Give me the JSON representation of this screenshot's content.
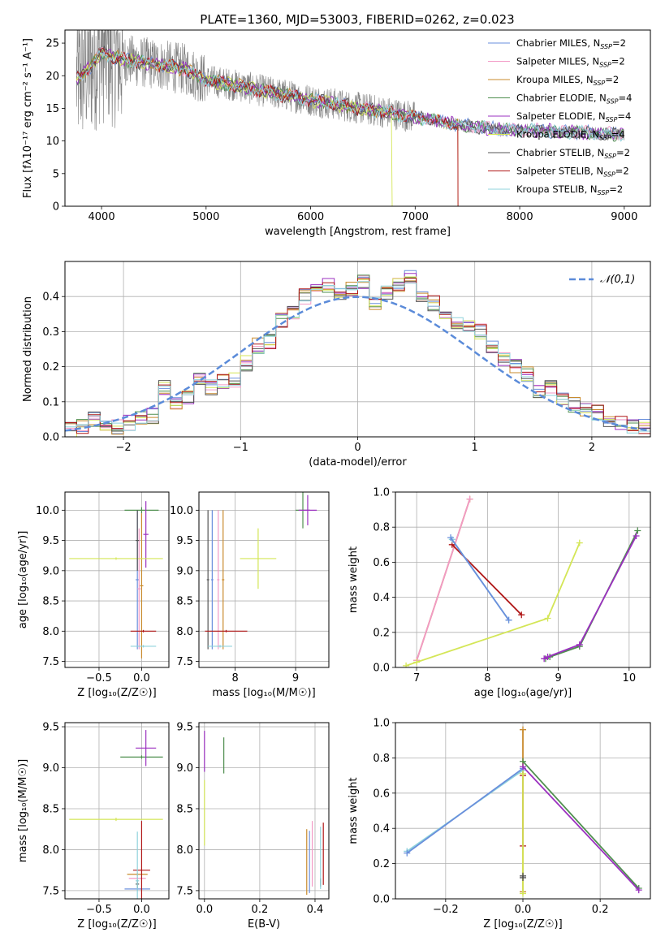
{
  "figure_title": "PLATE=1360, MJD=53003, FIBERID=0262, z=0.023",
  "models": [
    {
      "name": "Chabrier MILES",
      "n": "2",
      "color": "#6a8fdc"
    },
    {
      "name": "Salpeter MILES",
      "n": "2",
      "color": "#f29ac6"
    },
    {
      "name": "Kroupa MILES",
      "n": "2",
      "color": "#c98b2e"
    },
    {
      "name": "Chabrier ELODIE",
      "n": "4",
      "color": "#4f8f4f"
    },
    {
      "name": "Salpeter ELODIE",
      "n": "4",
      "color": "#9b30c0"
    },
    {
      "name": "Kroupa ELODIE",
      "n": "4",
      "color": "#d4e657"
    },
    {
      "name": "Chabrier STELIB",
      "n": "2",
      "color": "#555555"
    },
    {
      "name": "Salpeter STELIB",
      "n": "2",
      "color": "#b01818"
    },
    {
      "name": "Kroupa STELIB",
      "n": "2",
      "color": "#8fd3dc"
    }
  ],
  "data_color": "#808080",
  "gauss_color": "#5b8bd9",
  "chart_data": [
    {
      "id": "spectrum",
      "type": "line",
      "xlabel": "wavelength [Angstrom, rest frame]",
      "ylabel": "Flux [fλ10⁻¹⁷ erg cm⁻² s⁻¹ A⁻¹]",
      "xlim": [
        3650,
        9250
      ],
      "ylim": [
        0,
        27
      ],
      "xticks": [
        4000,
        5000,
        6000,
        7000,
        8000,
        9000
      ],
      "yticks": [
        0,
        5,
        10,
        15,
        20,
        25
      ],
      "grid": false,
      "legend": "top-right",
      "continuum": {
        "x": [
          3760,
          3900,
          4000,
          4200,
          4500,
          4800,
          5000,
          5300,
          5600,
          6000,
          6400,
          6800,
          7200,
          7500,
          7800,
          8200,
          8600,
          9000
        ],
        "y": [
          19.5,
          21.5,
          23.5,
          22.5,
          21.8,
          21.0,
          19.3,
          18.5,
          17.5,
          16.3,
          15.2,
          14.2,
          13.1,
          12.3,
          11.8,
          11.6,
          11.3,
          11.0
        ]
      }
    },
    {
      "id": "residuals",
      "type": "histogram",
      "xlabel": "(data-model)/error",
      "ylabel": "Normed distribution",
      "xlim": [
        -2.5,
        2.5
      ],
      "ylim": [
        0,
        0.5
      ],
      "xticks": [
        -2,
        -1,
        0,
        1,
        2
      ],
      "yticks": [
        0.0,
        0.1,
        0.2,
        0.3,
        0.4
      ],
      "grid": true,
      "legend": "top-right",
      "legend_label": "𝒩(0,1)",
      "bin_edges_start": -2.5,
      "bin_width": 0.1,
      "reference_hist": [
        0.02,
        0.03,
        0.05,
        0.04,
        0.03,
        0.04,
        0.05,
        0.06,
        0.14,
        0.1,
        0.11,
        0.16,
        0.14,
        0.16,
        0.16,
        0.21,
        0.26,
        0.27,
        0.33,
        0.35,
        0.4,
        0.42,
        0.43,
        0.41,
        0.42,
        0.44,
        0.38,
        0.41,
        0.43,
        0.46,
        0.4,
        0.38,
        0.35,
        0.33,
        0.32,
        0.3,
        0.26,
        0.22,
        0.2,
        0.18,
        0.13,
        0.14,
        0.11,
        0.09,
        0.08,
        0.07,
        0.05,
        0.04,
        0.03,
        0.03
      ]
    },
    {
      "id": "age_vs_Z",
      "type": "scatter",
      "xlabel": "Z [log₁₀(Z/Z☉)]",
      "ylabel": "age  [log₁₀(age/yr)]",
      "xlim": [
        -0.9,
        0.32
      ],
      "ylim": [
        7.4,
        10.3
      ],
      "xticks": [
        -0.5,
        0.0
      ],
      "yticks": [
        7.5,
        8.0,
        8.5,
        9.0,
        9.5,
        10.0
      ],
      "grid": true,
      "points": [
        {
          "m": 0,
          "x": -0.05,
          "y": 8.85,
          "ex": 0.02,
          "ey": 1.15
        },
        {
          "m": 1,
          "x": -0.03,
          "y": 8.7,
          "ex": 0.02,
          "ey": 1.0
        },
        {
          "m": 2,
          "x": 0.0,
          "y": 8.75,
          "ex": 0.02,
          "ey": 1.2
        },
        {
          "m": 3,
          "x": 0.0,
          "y": 10.0,
          "ex": 0.2,
          "ey": 0.05
        },
        {
          "m": 4,
          "x": 0.05,
          "y": 9.6,
          "ex": 0.03,
          "ey": 0.55
        },
        {
          "m": 5,
          "x": -0.3,
          "y": 9.2,
          "ex": 0.55,
          "ey": 0.02
        },
        {
          "m": 6,
          "x": -0.05,
          "y": 9.5,
          "ex": 0.02,
          "ey": 0.5
        },
        {
          "m": 7,
          "x": 0.02,
          "y": 8.0,
          "ex": 0.15,
          "ey": 0.02
        },
        {
          "m": 8,
          "x": 0.02,
          "y": 7.75,
          "ex": 0.15,
          "ey": 0.02
        }
      ]
    },
    {
      "id": "age_vs_mass",
      "type": "scatter",
      "xlabel": "mass [log₁₀(M/M☉)]",
      "ylabel": "",
      "xlim": [
        7.4,
        9.55
      ],
      "ylim": [
        7.4,
        10.3
      ],
      "xticks": [
        8,
        9
      ],
      "yticks": [
        7.5,
        8.0,
        8.5,
        9.0,
        9.5,
        10.0
      ],
      "grid": true,
      "points": [
        {
          "m": 0,
          "x": 7.62,
          "y": 8.85,
          "ex": 0.02,
          "ey": 1.15
        },
        {
          "m": 1,
          "x": 7.72,
          "y": 8.85,
          "ex": 0.02,
          "ey": 1.15
        },
        {
          "m": 2,
          "x": 7.8,
          "y": 8.85,
          "ex": 0.02,
          "ey": 1.15
        },
        {
          "m": 3,
          "x": 9.12,
          "y": 10.0,
          "ex": 0.12,
          "ey": 0.3
        },
        {
          "m": 4,
          "x": 9.2,
          "y": 10.0,
          "ex": 0.15,
          "ey": 0.25
        },
        {
          "m": 5,
          "x": 8.38,
          "y": 9.2,
          "ex": 0.3,
          "ey": 0.5
        },
        {
          "m": 6,
          "x": 7.55,
          "y": 8.85,
          "ex": 0.02,
          "ey": 1.15
        },
        {
          "m": 7,
          "x": 7.85,
          "y": 8.0,
          "ex": 0.35,
          "ey": 0.02
        },
        {
          "m": 8,
          "x": 7.75,
          "y": 7.75,
          "ex": 0.2,
          "ey": 0.02
        }
      ]
    },
    {
      "id": "weight_vs_age",
      "type": "line",
      "xlabel": "age  [log₁₀(age/yr)]",
      "ylabel": "mass weight",
      "xlim": [
        6.7,
        10.3
      ],
      "ylim": [
        0,
        1.0
      ],
      "xticks": [
        7,
        8,
        9,
        10
      ],
      "yticks": [
        0.0,
        0.2,
        0.4,
        0.6,
        0.8,
        1.0
      ],
      "grid": true,
      "series": [
        {
          "m": 2,
          "x": [
            7.0,
            7.75
          ],
          "y": [
            0.04,
            0.96
          ]
        },
        {
          "m": 1,
          "x": [
            7.0,
            7.75
          ],
          "y": [
            0.04,
            0.96
          ]
        },
        {
          "m": 7,
          "x": [
            7.5,
            8.48
          ],
          "y": [
            0.7,
            0.3
          ]
        },
        {
          "m": 8,
          "x": [
            7.5,
            8.3
          ],
          "y": [
            0.73,
            0.27
          ]
        },
        {
          "m": 0,
          "x": [
            7.48,
            8.3
          ],
          "y": [
            0.74,
            0.27
          ]
        },
        {
          "m": 5,
          "x": [
            6.85,
            7.0,
            8.85,
            9.3
          ],
          "y": [
            0.01,
            0.03,
            0.28,
            0.71
          ]
        },
        {
          "m": 3,
          "x": [
            8.82,
            8.88,
            9.3,
            10.12
          ],
          "y": [
            0.05,
            0.06,
            0.12,
            0.78
          ]
        },
        {
          "m": 4,
          "x": [
            8.8,
            8.85,
            9.3,
            10.1
          ],
          "y": [
            0.05,
            0.06,
            0.13,
            0.75
          ]
        }
      ]
    },
    {
      "id": "mass_vs_Z",
      "type": "scatter",
      "xlabel": "Z [log₁₀(Z/Z☉)]",
      "ylabel": "mass [log₁₀(M/M☉)]",
      "xlim": [
        -0.9,
        0.32
      ],
      "ylim": [
        7.4,
        9.55
      ],
      "xticks": [
        -0.5,
        0.0
      ],
      "yticks": [
        7.5,
        8.0,
        8.5,
        9.0,
        9.5
      ],
      "grid": true,
      "points": [
        {
          "m": 0,
          "x": -0.05,
          "y": 7.52,
          "ex": 0.15,
          "ey": 0.02
        },
        {
          "m": 1,
          "x": -0.05,
          "y": 7.65,
          "ex": 0.1,
          "ey": 0.02
        },
        {
          "m": 2,
          "x": -0.05,
          "y": 7.7,
          "ex": 0.12,
          "ey": 0.02
        },
        {
          "m": 3,
          "x": 0.0,
          "y": 9.13,
          "ex": 0.25,
          "ey": 0.02
        },
        {
          "m": 4,
          "x": 0.05,
          "y": 9.24,
          "ex": 0.12,
          "ey": 0.22
        },
        {
          "m": 5,
          "x": -0.3,
          "y": 8.37,
          "ex": 0.55,
          "ey": 0.02
        },
        {
          "m": 6,
          "x": -0.05,
          "y": 7.58,
          "ex": 0.02,
          "ey": 0.05
        },
        {
          "m": 7,
          "x": 0.0,
          "y": 7.75,
          "ex": 0.1,
          "ey": 0.6
        },
        {
          "m": 8,
          "x": -0.05,
          "y": 7.62,
          "ex": 0.02,
          "ey": 0.6
        }
      ]
    },
    {
      "id": "mass_vs_EBV",
      "type": "scatter",
      "xlabel": "E(B-V)",
      "ylabel": "",
      "xlim": [
        -0.02,
        0.45
      ],
      "ylim": [
        7.4,
        9.55
      ],
      "xticks": [
        0.0,
        0.2,
        0.4
      ],
      "yticks": [
        7.5,
        8.0,
        8.5,
        9.0,
        9.5
      ],
      "grid": true,
      "points": [
        {
          "m": 0,
          "x": 0.38,
          "y": 7.85,
          "ex": 0.0,
          "ey": 0.38
        },
        {
          "m": 1,
          "x": 0.39,
          "y": 7.95,
          "ex": 0.0,
          "ey": 0.4
        },
        {
          "m": 2,
          "x": 0.37,
          "y": 7.85,
          "ex": 0.0,
          "ey": 0.4
        },
        {
          "m": 3,
          "x": 0.07,
          "y": 9.15,
          "ex": 0.0,
          "ey": 0.22
        },
        {
          "m": 4,
          "x": 0.0,
          "y": 9.2,
          "ex": 0.0,
          "ey": 0.25
        },
        {
          "m": 5,
          "x": 0.0,
          "y": 8.45,
          "ex": 0.0,
          "ey": 0.4
        },
        {
          "m": 6,
          "x": 0.42,
          "y": 7.6,
          "ex": 0.0,
          "ey": 0.05
        },
        {
          "m": 7,
          "x": 0.43,
          "y": 7.95,
          "ex": 0.0,
          "ey": 0.38
        },
        {
          "m": 8,
          "x": 0.42,
          "y": 7.9,
          "ex": 0.0,
          "ey": 0.38
        }
      ]
    },
    {
      "id": "weight_vs_Z",
      "type": "line",
      "xlabel": "Z [log₁₀(Z/Z☉)]",
      "ylabel": "mass weight",
      "xlim": [
        -0.33,
        0.33
      ],
      "ylim": [
        0,
        1.0
      ],
      "xticks": [
        -0.2,
        0.0,
        0.2
      ],
      "yticks": [
        0.0,
        0.2,
        0.4,
        0.6,
        0.8,
        1.0
      ],
      "grid": true,
      "series": [
        {
          "m": 2,
          "x": [
            0.0,
            0.0
          ],
          "y": [
            0.04,
            0.96
          ]
        },
        {
          "m": 7,
          "x": [
            0.0,
            0.0
          ],
          "y": [
            0.3,
            0.7
          ]
        },
        {
          "m": 8,
          "x": [
            -0.3,
            0.0
          ],
          "y": [
            0.27,
            0.73
          ]
        },
        {
          "m": 0,
          "x": [
            -0.3,
            0.0
          ],
          "y": [
            0.26,
            0.74
          ]
        },
        {
          "m": 5,
          "x": [
            0.0,
            0.0
          ],
          "y": [
            0.03,
            0.71
          ]
        },
        {
          "m": 3,
          "x": [
            0.0,
            0.3
          ],
          "y": [
            0.78,
            0.06
          ]
        },
        {
          "m": 4,
          "x": [
            0.0,
            0.3
          ],
          "y": [
            0.75,
            0.05
          ]
        },
        {
          "m": 6,
          "x": [
            0.0,
            0.0
          ],
          "y": [
            0.12,
            0.13
          ]
        }
      ]
    }
  ]
}
